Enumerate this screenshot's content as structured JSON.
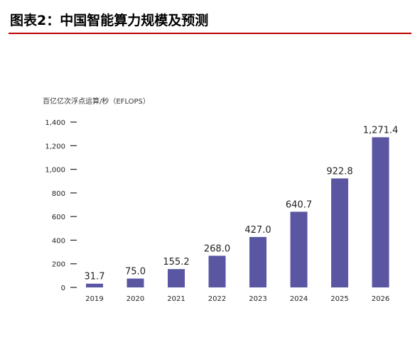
{
  "figure": {
    "title": "图表2：中国智能算力规模及预测"
  },
  "colors": {
    "bar": "#5b56a2",
    "accent_rule": "#c00000",
    "axis": "#222222"
  },
  "chart_data": {
    "type": "bar",
    "title": "",
    "xlabel": "",
    "ylabel": "百亿亿次浮点运算/秒（EFLOPS）",
    "categories": [
      "2019",
      "2020",
      "2021",
      "2022",
      "2023",
      "2024",
      "2025",
      "2026"
    ],
    "values": [
      31.7,
      75.0,
      155.2,
      268.0,
      427.0,
      640.7,
      922.8,
      1271.4
    ],
    "value_labels": [
      "31.7",
      "75.0",
      "155.2",
      "268.0",
      "427.0",
      "640.7",
      "922.8",
      "1,271.4"
    ],
    "yticks": [
      0,
      200,
      400,
      600,
      800,
      1000,
      1200,
      1400
    ],
    "ytick_labels": [
      "0",
      "200",
      "400",
      "600",
      "800",
      "1,000",
      "1,200",
      "1,400"
    ],
    "ylim": [
      0,
      1400
    ],
    "grid": false,
    "legend": "none"
  }
}
